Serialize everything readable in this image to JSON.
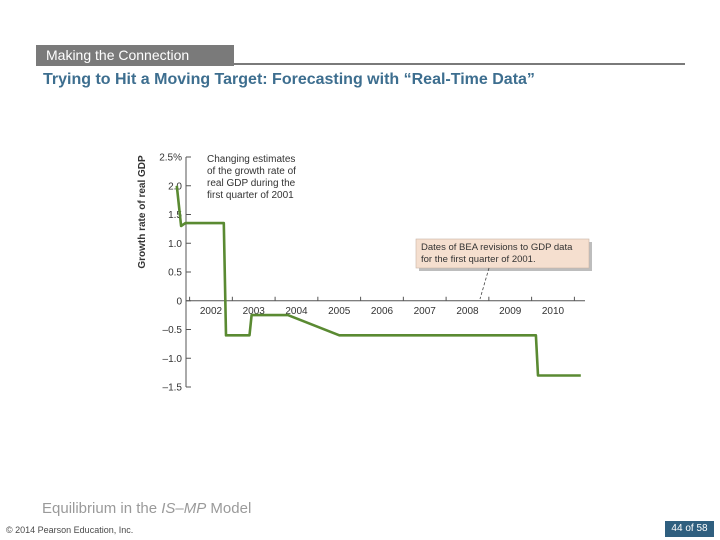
{
  "header": {
    "tag": "Making the Connection",
    "title": "Trying to Hit a Moving Target: Forecasting with “Real-Time Data”"
  },
  "chart_data": {
    "type": "line",
    "ylabel": "Growth rate of real GDP",
    "ylim": [
      -1.5,
      2.5
    ],
    "xlim": [
      2001.15,
      2010.7
    ],
    "yticks": [
      {
        "value": 2.5,
        "label": "2.5%"
      },
      {
        "value": 2.0,
        "label": "2.0"
      },
      {
        "value": 1.5,
        "label": "1.5"
      },
      {
        "value": 1.0,
        "label": "1.0"
      },
      {
        "value": 0.5,
        "label": "0.5"
      },
      {
        "value": 0,
        "label": "0"
      },
      {
        "value": -0.5,
        "label": "–0.5"
      },
      {
        "value": -1.0,
        "label": "–1.0"
      },
      {
        "value": -1.5,
        "label": "–1.5"
      }
    ],
    "xticks": [
      {
        "value": 2002,
        "label": "2002"
      },
      {
        "value": 2003,
        "label": "2003"
      },
      {
        "value": 2004,
        "label": "2004"
      },
      {
        "value": 2005,
        "label": "2005"
      },
      {
        "value": 2006,
        "label": "2006"
      },
      {
        "value": 2007,
        "label": "2007"
      },
      {
        "value": 2008,
        "label": "2008"
      },
      {
        "value": 2009,
        "label": "2009"
      },
      {
        "value": 2010,
        "label": "2010"
      }
    ],
    "series": [
      {
        "color": "#5a8a32",
        "x": [
          2001.2,
          2001.3,
          2001.4,
          2002.3,
          2002.35,
          2002.9,
          2002.95,
          2003.8,
          2005.0,
          2006.0,
          2007.0,
          2008.0,
          2009.0,
          2009.6,
          2009.65,
          2010.65
        ],
        "y": [
          2.0,
          1.3,
          1.35,
          1.35,
          -0.6,
          -0.6,
          -0.25,
          -0.25,
          -0.6,
          -0.6,
          -0.6,
          -0.6,
          -0.6,
          -0.6,
          -1.3,
          -1.3
        ]
      }
    ],
    "annotations": [
      {
        "id": "estimates",
        "lines": [
          "Changing estimates",
          "of the growth rate of",
          "real GDP during the",
          "first quarter of 2001"
        ]
      },
      {
        "id": "revisions",
        "lines": [
          "Dates of BEA revisions to GDP data",
          "for the first quarter of 2001."
        ],
        "box_color": "#f5dfcf"
      }
    ]
  },
  "footer": {
    "section_prefix": "Equilibrium in the ",
    "section_model": "IS–MP",
    "section_suffix": " Model",
    "copyright": "© 2014 Pearson Education, Inc.",
    "page": "44 of 58"
  }
}
